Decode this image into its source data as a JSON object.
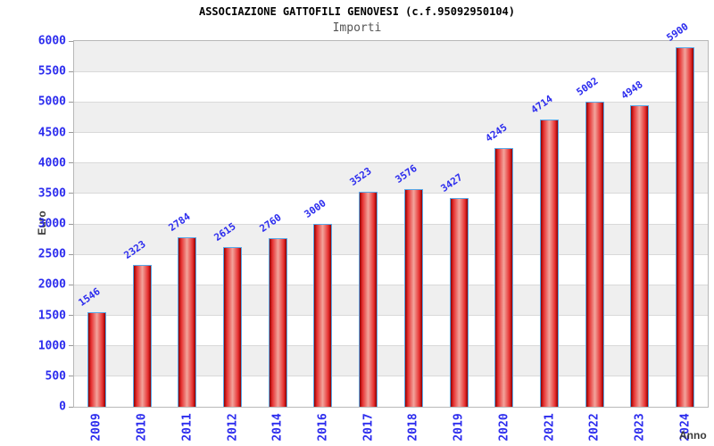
{
  "chart_data": {
    "type": "bar",
    "title": "ASSOCIAZIONE GATTOFILI GENOVESI (c.f.95092950104)",
    "subtitle": "Importi",
    "xlabel": "Anno",
    "ylabel": "Euro",
    "categories": [
      "2009",
      "2010",
      "2011",
      "2012",
      "2014",
      "2016",
      "2017",
      "2018",
      "2019",
      "2020",
      "2021",
      "2022",
      "2023",
      "2024"
    ],
    "values": [
      1546,
      2323,
      2784,
      2615,
      2760,
      3000,
      3523,
      3576,
      3427,
      4245,
      4714,
      5002,
      4948,
      5900
    ],
    "ylim": [
      0,
      6000
    ],
    "ytick_step": 500,
    "grid": true,
    "legend_position": "none",
    "colors": {
      "bar_border": "#58a8e8",
      "bar_gradient_dark": "#8e0000",
      "bar_gradient_mid": "#e62e2e",
      "bar_gradient_light": "#f2a49c",
      "tick_label_blue": "#2c2cee",
      "band_gray": "#efefef",
      "band_white": "#ffffff",
      "grid_line": "#d9d9d9",
      "frame": "#b8b8b8",
      "title_color": "#000000",
      "subtitle_color": "#555555",
      "axis_title_color": "#3a3a3a"
    }
  }
}
